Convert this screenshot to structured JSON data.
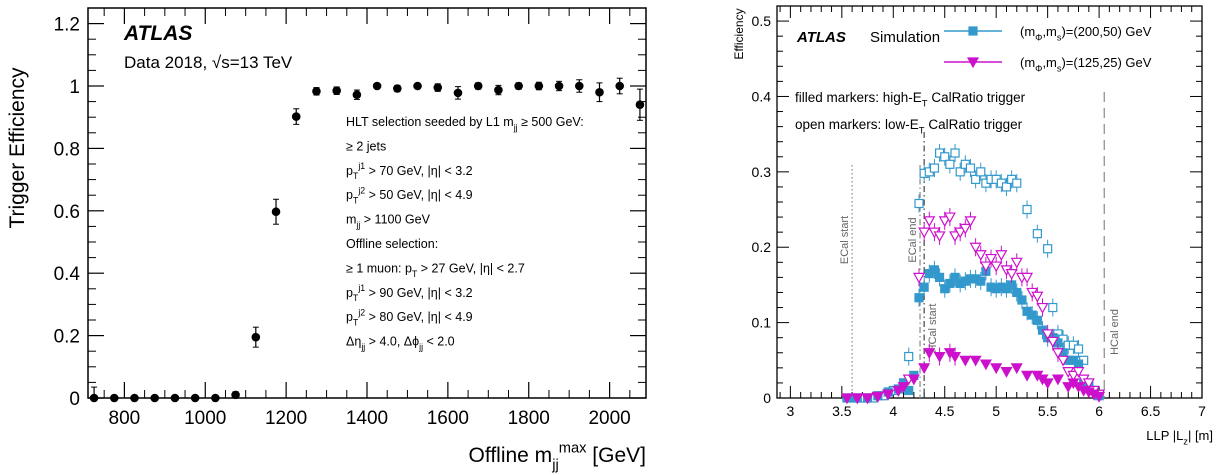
{
  "chart_data": [
    {
      "type": "scatter",
      "ylabel": "Trigger Efficiency",
      "xlabel_main": "Offline m",
      "xlabel_sup": "max",
      "xlabel_sub": "jj",
      "xlabel_unit": "[GeV]",
      "xlim": [
        710,
        2090
      ],
      "ylim": [
        0,
        1.25
      ],
      "xticks": [
        800,
        1000,
        1200,
        1400,
        1600,
        1800,
        2000
      ],
      "yticks": [
        0,
        0.2,
        0.4,
        0.6,
        0.8,
        1,
        1.2
      ],
      "ytick_labels": [
        "0",
        "0.2",
        "0.4",
        "0.6",
        "0.8",
        "1",
        "1.2"
      ],
      "atlas": "ATLAS",
      "subtitle": "Data 2018, √s=13 TeV",
      "points": [
        {
          "x": 725,
          "y": 0.0,
          "err": 0.035
        },
        {
          "x": 775,
          "y": 0.0,
          "err": 0.0
        },
        {
          "x": 825,
          "y": 0.0,
          "err": 0.0
        },
        {
          "x": 875,
          "y": 0.0,
          "err": 0.0
        },
        {
          "x": 925,
          "y": 0.0,
          "err": 0.0
        },
        {
          "x": 975,
          "y": 0.0,
          "err": 0.0
        },
        {
          "x": 1025,
          "y": 0.0,
          "err": 0.0
        },
        {
          "x": 1075,
          "y": 0.01,
          "err": 0.01
        },
        {
          "x": 1125,
          "y": 0.195,
          "err": 0.032
        },
        {
          "x": 1175,
          "y": 0.597,
          "err": 0.04
        },
        {
          "x": 1225,
          "y": 0.902,
          "err": 0.025
        },
        {
          "x": 1275,
          "y": 0.983,
          "err": 0.012
        },
        {
          "x": 1325,
          "y": 0.985,
          "err": 0.012
        },
        {
          "x": 1375,
          "y": 0.972,
          "err": 0.015
        },
        {
          "x": 1425,
          "y": 1.0,
          "err": 0.008
        },
        {
          "x": 1475,
          "y": 0.992,
          "err": 0.01
        },
        {
          "x": 1525,
          "y": 1.0,
          "err": 0.008
        },
        {
          "x": 1575,
          "y": 0.995,
          "err": 0.012
        },
        {
          "x": 1625,
          "y": 0.978,
          "err": 0.02
        },
        {
          "x": 1675,
          "y": 1.0,
          "err": 0.01
        },
        {
          "x": 1725,
          "y": 0.987,
          "err": 0.015
        },
        {
          "x": 1775,
          "y": 1.0,
          "err": 0.01
        },
        {
          "x": 1825,
          "y": 1.0,
          "err": 0.012
        },
        {
          "x": 1875,
          "y": 1.0,
          "err": 0.015
        },
        {
          "x": 1925,
          "y": 1.0,
          "err": 0.02
        },
        {
          "x": 1975,
          "y": 0.98,
          "err": 0.03
        },
        {
          "x": 2025,
          "y": 1.0,
          "err": 0.025
        },
        {
          "x": 2075,
          "y": 0.94,
          "err": 0.05
        }
      ],
      "annotation_lines": [
        [
          {
            "t": "HLT selection seeded by L1 m"
          },
          {
            "t": "jj",
            "sub": true
          },
          {
            "t": " ≥ 500 GeV:"
          }
        ],
        [
          {
            "t": "≥ 2 jets"
          }
        ],
        [
          {
            "t": "p"
          },
          {
            "t": "T",
            "sub": true
          },
          {
            "t": "j1",
            "sup": true
          },
          {
            "t": " > 70 GeV, |η| < 3.2"
          }
        ],
        [
          {
            "t": "p"
          },
          {
            "t": "T",
            "sub": true
          },
          {
            "t": "j2",
            "sup": true
          },
          {
            "t": " > 50 GeV, |η| < 4.9"
          }
        ],
        [
          {
            "t": "m"
          },
          {
            "t": "jj",
            "sub": true
          },
          {
            "t": " > 1100 GeV"
          }
        ],
        [
          {
            "t": "Offline selection:"
          }
        ],
        [
          {
            "t": "≥ 1 muon: p"
          },
          {
            "t": "T",
            "sub": true
          },
          {
            "t": " > 27 GeV, |η| < 2.7"
          }
        ],
        [
          {
            "t": "p"
          },
          {
            "t": "T",
            "sub": true
          },
          {
            "t": "j1",
            "sup": true
          },
          {
            "t": " > 90 GeV, |η| < 3.2"
          }
        ],
        [
          {
            "t": "p"
          },
          {
            "t": "T",
            "sub": true
          },
          {
            "t": "j2",
            "sup": true
          },
          {
            "t": " > 80 GeV, |η| < 4.9"
          }
        ],
        [
          {
            "t": "Δη"
          },
          {
            "t": "jj",
            "sub": true
          },
          {
            "t": " > 4.0, Δϕ"
          },
          {
            "t": "jj",
            "sub": true
          },
          {
            "t": " < 2.0"
          }
        ]
      ],
      "marker_color": "#000000"
    },
    {
      "type": "scatter",
      "ylabel": "Efficiency",
      "xlabel": "LLP |L",
      "xlabel_sub": "z",
      "xlabel_unit": "| [m]",
      "xlim": [
        2.87,
        7.0
      ],
      "ylim": [
        0,
        0.52
      ],
      "xticks": [
        3,
        3.5,
        4,
        4.5,
        5,
        5.5,
        6,
        6.5,
        7
      ],
      "xtick_labels": [
        "3",
        "3.5",
        "4",
        "4.5",
        "5",
        "5.5",
        "6",
        "6.5",
        "7"
      ],
      "yticks": [
        0,
        0.1,
        0.2,
        0.3,
        0.4,
        0.5
      ],
      "ytick_labels": [
        "0",
        "0.1",
        "0.2",
        "0.3",
        "0.4",
        "0.5"
      ],
      "atlas": "ATLAS",
      "atlas_suffix": "Simulation",
      "notes": [
        [
          {
            "t": "filled markers: high-E"
          },
          {
            "t": "T",
            "sub": true
          },
          {
            "t": " CalRatio trigger"
          }
        ],
        [
          {
            "t": "open markers: low-E"
          },
          {
            "t": "T",
            "sub": true
          },
          {
            "t": " CalRatio trigger"
          }
        ]
      ],
      "vertical_lines": [
        {
          "x": 3.6,
          "label": "ECal start",
          "style": "dotted"
        },
        {
          "x": 4.26,
          "label": "ECal end",
          "style": "dashdot"
        },
        {
          "x": 4.3,
          "label": "HCal start",
          "style": "dashdot"
        },
        {
          "x": 6.05,
          "label": "HCal end",
          "style": "dashed"
        }
      ],
      "series": [
        {
          "name": "(m_Φ,m_s)=(200,50) GeV",
          "legend_parts": [
            {
              "t": "(m"
            },
            {
              "t": "Φ",
              "sub": true
            },
            {
              "t": ",m"
            },
            {
              "t": "s",
              "sub": true
            },
            {
              "t": ")=(200,50) GeV"
            }
          ],
          "color": "#3399cc",
          "marker": "square",
          "high_et": [
            [
              3.55,
              0.0
            ],
            [
              3.6,
              0.0
            ],
            [
              3.65,
              0.0
            ],
            [
              3.75,
              0.0
            ],
            [
              3.85,
              0.003
            ],
            [
              3.95,
              0.008
            ],
            [
              4.05,
              0.012
            ],
            [
              4.1,
              0.02
            ],
            [
              4.15,
              0.01
            ],
            [
              4.2,
              0.03
            ],
            [
              4.25,
              0.133
            ],
            [
              4.3,
              0.147
            ],
            [
              4.35,
              0.165
            ],
            [
              4.4,
              0.17
            ],
            [
              4.45,
              0.16
            ],
            [
              4.5,
              0.145
            ],
            [
              4.55,
              0.152
            ],
            [
              4.6,
              0.16
            ],
            [
              4.65,
              0.152
            ],
            [
              4.7,
              0.155
            ],
            [
              4.75,
              0.158
            ],
            [
              4.8,
              0.158
            ],
            [
              4.85,
              0.155
            ],
            [
              4.9,
              0.168
            ],
            [
              4.95,
              0.147
            ],
            [
              5.0,
              0.145
            ],
            [
              5.05,
              0.147
            ],
            [
              5.1,
              0.145
            ],
            [
              5.15,
              0.15
            ],
            [
              5.2,
              0.14
            ],
            [
              5.25,
              0.13
            ],
            [
              5.3,
              0.115
            ],
            [
              5.35,
              0.11
            ],
            [
              5.4,
              0.103
            ],
            [
              5.45,
              0.09
            ],
            [
              5.5,
              0.08
            ],
            [
              5.55,
              0.08
            ],
            [
              5.6,
              0.073
            ],
            [
              5.65,
              0.06
            ],
            [
              5.7,
              0.05
            ],
            [
              5.75,
              0.05
            ],
            [
              5.8,
              0.045
            ],
            [
              5.85,
              0.02
            ],
            [
              5.9,
              0.015
            ],
            [
              5.95,
              0.01
            ],
            [
              6.0,
              0.003
            ]
          ],
          "low_et": [
            [
              3.7,
              0.0
            ],
            [
              3.8,
              0.0
            ],
            [
              3.9,
              0.003
            ],
            [
              4.0,
              0.01
            ],
            [
              4.1,
              0.02
            ],
            [
              4.15,
              0.055
            ],
            [
              4.25,
              0.258
            ],
            [
              4.3,
              0.298
            ],
            [
              4.35,
              0.3
            ],
            [
              4.4,
              0.305
            ],
            [
              4.45,
              0.325
            ],
            [
              4.5,
              0.32
            ],
            [
              4.55,
              0.31
            ],
            [
              4.6,
              0.325
            ],
            [
              4.65,
              0.3
            ],
            [
              4.7,
              0.31
            ],
            [
              4.75,
              0.305
            ],
            [
              4.8,
              0.29
            ],
            [
              4.85,
              0.3
            ],
            [
              4.9,
              0.285
            ],
            [
              4.95,
              0.29
            ],
            [
              5.0,
              0.29
            ],
            [
              5.05,
              0.285
            ],
            [
              5.1,
              0.28
            ],
            [
              5.15,
              0.29
            ],
            [
              5.2,
              0.285
            ],
            [
              5.3,
              0.25
            ],
            [
              5.4,
              0.218
            ],
            [
              5.5,
              0.198
            ],
            [
              5.55,
              0.12
            ],
            [
              5.6,
              0.085
            ],
            [
              5.65,
              0.078
            ],
            [
              5.7,
              0.07
            ],
            [
              5.75,
              0.07
            ],
            [
              5.8,
              0.065
            ],
            [
              5.85,
              0.05
            ],
            [
              5.9,
              0.02
            ],
            [
              5.95,
              0.01
            ],
            [
              6.0,
              0.005
            ]
          ]
        },
        {
          "name": "(m_Φ,m_s)=(125,25) GeV",
          "legend_parts": [
            {
              "t": "(m"
            },
            {
              "t": "Φ",
              "sub": true
            },
            {
              "t": ",m"
            },
            {
              "t": "s",
              "sub": true
            },
            {
              "t": ")=(125,25) GeV"
            }
          ],
          "color": "#cc11cc",
          "marker": "triangle-down",
          "high_et": [
            [
              3.55,
              0.0
            ],
            [
              3.65,
              0.0
            ],
            [
              3.75,
              0.0
            ],
            [
              3.85,
              0.002
            ],
            [
              3.95,
              0.005
            ],
            [
              4.05,
              0.01
            ],
            [
              4.1,
              0.015
            ],
            [
              4.2,
              0.025
            ],
            [
              4.3,
              0.04
            ],
            [
              4.35,
              0.06
            ],
            [
              4.45,
              0.055
            ],
            [
              4.55,
              0.06
            ],
            [
              4.6,
              0.055
            ],
            [
              4.7,
              0.05
            ],
            [
              4.8,
              0.05
            ],
            [
              4.9,
              0.045
            ],
            [
              5.0,
              0.04
            ],
            [
              5.1,
              0.035
            ],
            [
              5.2,
              0.04
            ],
            [
              5.3,
              0.03
            ],
            [
              5.4,
              0.03
            ],
            [
              5.45,
              0.025
            ],
            [
              5.5,
              0.02
            ],
            [
              5.6,
              0.025
            ],
            [
              5.7,
              0.015
            ],
            [
              5.75,
              0.02
            ],
            [
              5.8,
              0.015
            ],
            [
              5.85,
              0.01
            ],
            [
              5.9,
              0.008
            ],
            [
              5.95,
              0.005
            ],
            [
              6.0,
              0.002
            ]
          ],
          "low_et": [
            [
              3.65,
              0.0
            ],
            [
              3.75,
              0.0
            ],
            [
              3.85,
              0.002
            ],
            [
              3.95,
              0.005
            ],
            [
              4.05,
              0.01
            ],
            [
              4.15,
              0.025
            ],
            [
              4.25,
              0.16
            ],
            [
              4.3,
              0.22
            ],
            [
              4.35,
              0.235
            ],
            [
              4.4,
              0.22
            ],
            [
              4.45,
              0.215
            ],
            [
              4.5,
              0.235
            ],
            [
              4.55,
              0.24
            ],
            [
              4.6,
              0.215
            ],
            [
              4.65,
              0.22
            ],
            [
              4.7,
              0.225
            ],
            [
              4.75,
              0.235
            ],
            [
              4.8,
              0.2
            ],
            [
              4.85,
              0.19
            ],
            [
              4.9,
              0.175
            ],
            [
              4.95,
              0.185
            ],
            [
              5.0,
              0.175
            ],
            [
              5.05,
              0.19
            ],
            [
              5.1,
              0.17
            ],
            [
              5.15,
              0.165
            ],
            [
              5.2,
              0.18
            ],
            [
              5.25,
              0.16
            ],
            [
              5.3,
              0.16
            ],
            [
              5.35,
              0.14
            ],
            [
              5.4,
              0.135
            ],
            [
              5.45,
              0.12
            ],
            [
              5.5,
              0.085
            ],
            [
              5.55,
              0.075
            ],
            [
              5.6,
              0.06
            ],
            [
              5.65,
              0.05
            ],
            [
              5.7,
              0.035
            ],
            [
              5.75,
              0.03
            ],
            [
              5.8,
              0.035
            ],
            [
              5.85,
              0.025
            ],
            [
              5.9,
              0.02
            ],
            [
              5.95,
              0.01
            ],
            [
              6.0,
              0.005
            ]
          ]
        }
      ]
    }
  ]
}
